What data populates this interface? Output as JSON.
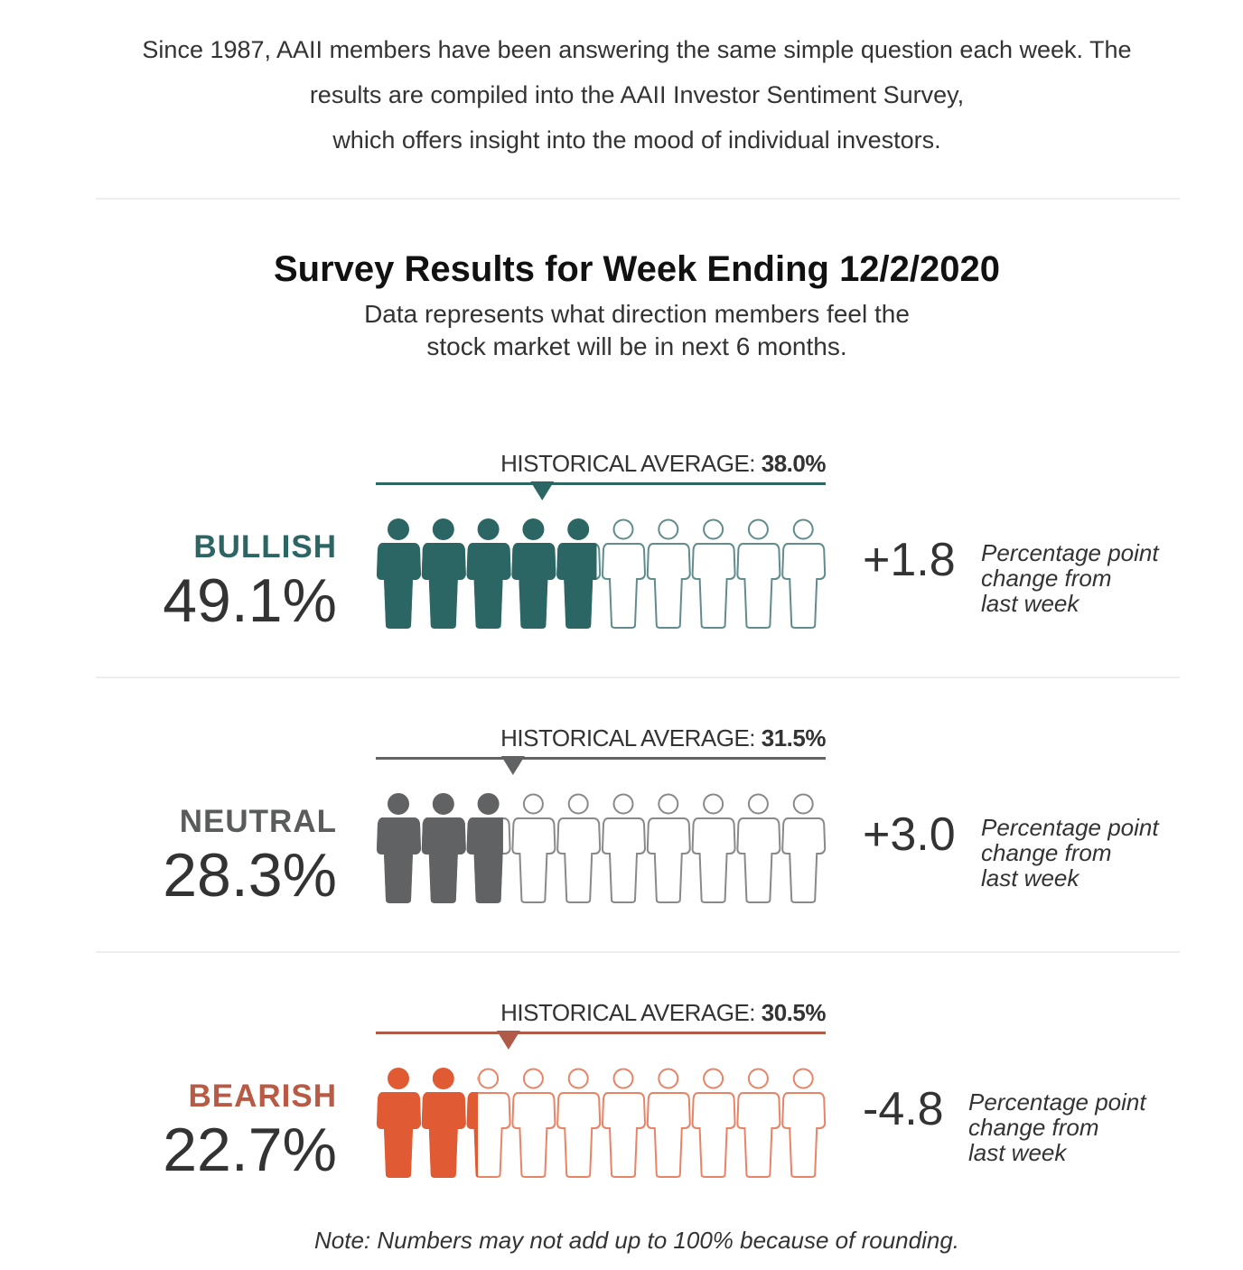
{
  "intro": {
    "line1": "Since 1987, AAII members have been answering the same simple question each week. The",
    "line2": "results are compiled into the AAII Investor Sentiment Survey,",
    "line3": "which offers insight into the mood of individual investors."
  },
  "header": {
    "title": "Survey Results for Week Ending 12/2/2020",
    "subtitle1": "Data represents what direction members feel the",
    "subtitle2": "stock market will be in next 6 months."
  },
  "chart_data": {
    "type": "pictogram",
    "icons_per_row": 10,
    "icon": "person-icon",
    "series": [
      {
        "name": "BULLISH",
        "value": 49.1,
        "value_label": "49.1%",
        "historical_average": 38.0,
        "hist_label": "HISTORICAL AVERAGE:",
        "hist_value": "38.0%",
        "change": "+1.8",
        "change_text": [
          "Percentage point",
          "change from",
          "last week"
        ],
        "color": "#2b6665",
        "label_color": "#2b6665"
      },
      {
        "name": "NEUTRAL",
        "value": 28.3,
        "value_label": "28.3%",
        "historical_average": 31.5,
        "hist_label": "HISTORICAL AVERAGE:",
        "hist_value": "31.5%",
        "change": "+3.0",
        "change_text": [
          "Percentage point",
          "change from",
          "last week"
        ],
        "color": "#616264",
        "label_color": "#5a5c5c"
      },
      {
        "name": "BEARISH",
        "value": 22.7,
        "value_label": "22.7%",
        "historical_average": 30.5,
        "hist_label": "HISTORICAL AVERAGE:",
        "hist_value": "30.5%",
        "change": "-4.8",
        "change_text": [
          "Percentage point",
          "change from",
          "last week"
        ],
        "color": "#e05a33",
        "label_color": "#b85a44",
        "line_color": "#b05a47"
      }
    ]
  },
  "note": "Note: Numbers may not add up to 100% because of rounding."
}
